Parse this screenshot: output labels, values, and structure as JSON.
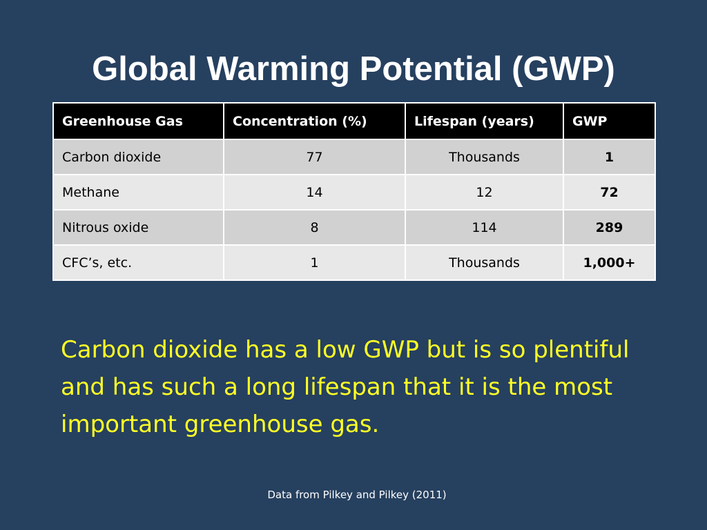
{
  "slide": {
    "title": "Global Warming Potential (GWP)",
    "summary": "Carbon dioxide has a low GWP but is so plentiful and has such a long lifespan that it is the most important greenhouse gas.",
    "source": "Data from Pilkey and Pilkey (2011)"
  },
  "table": {
    "headers": [
      "Greenhouse Gas",
      "Concentration (%)",
      "Lifespan (years)",
      "GWP"
    ],
    "rows": [
      {
        "gas": "Carbon dioxide",
        "concentration": "77",
        "lifespan": "Thousands",
        "gwp": "1"
      },
      {
        "gas": "Methane",
        "concentration": "14",
        "lifespan": "12",
        "gwp": "72"
      },
      {
        "gas": "Nitrous oxide",
        "concentration": "8",
        "lifespan": "114",
        "gwp": "289"
      },
      {
        "gas": "CFC’s, etc.",
        "concentration": "1",
        "lifespan": "Thousands",
        "gwp": "1,000+"
      }
    ]
  },
  "colors": {
    "background": "#26405f",
    "title": "#ffffff",
    "summary": "#ffff26",
    "header_bg": "#000000",
    "row_dark": "#d1d1d1",
    "row_light": "#e8e8e8"
  }
}
